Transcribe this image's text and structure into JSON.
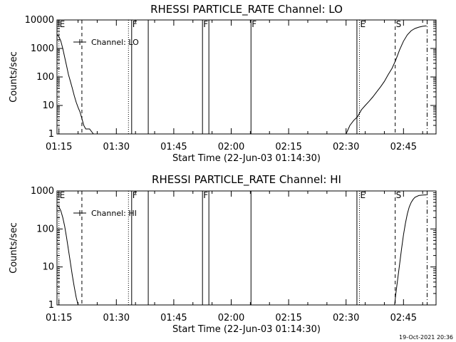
{
  "chart_data": [
    {
      "type": "line",
      "title": "RHESSI PARTICLE_RATE Channel: LO",
      "xlabel": "Start Time (22-Jun-03 01:14:30)",
      "ylabel": "Counts/sec",
      "yscale": "log",
      "xlim": [
        "01:14:30",
        "02:53:30"
      ],
      "ylim": [
        1,
        10000
      ],
      "x_ticks": [
        "01:15",
        "01:30",
        "01:45",
        "02:00",
        "02:15",
        "02:30",
        "02:45"
      ],
      "y_ticks": [
        "1",
        "10",
        "100",
        "1000",
        "10000"
      ],
      "legend": {
        "position": "top-left",
        "entries": [
          "Channel: LO"
        ]
      },
      "grid": false,
      "series": [
        {
          "name": "Channel: LO",
          "segments": [
            {
              "x": [
                "01:14:30",
                "01:15:00",
                "01:15:30",
                "01:16:00",
                "01:16:30",
                "01:17:00",
                "01:17:30",
                "01:18:00",
                "01:18:30",
                "01:19:00",
                "01:19:30",
                "01:20:00",
                "01:20:30",
                "01:21:00",
                "01:21:30",
                "01:22:00",
                "01:23:00",
                "01:24:00"
              ],
              "y": [
                3000,
                2600,
                1800,
                1000,
                500,
                250,
                120,
                70,
                40,
                22,
                13,
                8.5,
                6,
                3.5,
                2,
                1.5,
                1.5,
                1
              ]
            },
            {
              "x": [
                "02:30:00",
                "02:31:00",
                "02:32:00",
                "02:33:00",
                "02:34:00",
                "02:35:00",
                "02:36:00",
                "02:37:00",
                "02:38:00",
                "02:39:00",
                "02:40:00",
                "02:41:00",
                "02:42:00",
                "02:43:00",
                "02:44:00",
                "02:45:00",
                "02:46:00",
                "02:47:00",
                "02:48:00",
                "02:49:00",
                "02:50:00",
                "02:51:00"
              ],
              "y": [
                1,
                2,
                3,
                4,
                7,
                10,
                14,
                20,
                30,
                45,
                70,
                120,
                200,
                400,
                900,
                1800,
                3000,
                4200,
                5000,
                5600,
                6000,
                6200
              ]
            }
          ]
        }
      ],
      "markers": [
        {
          "label": "E",
          "x": "01:15:00",
          "style": "dotted"
        },
        {
          "x": "01:21:00",
          "style": "dashed"
        },
        {
          "x": "01:33:10",
          "style": "dotted"
        },
        {
          "label": "F",
          "x": "01:34:00",
          "style": "solid"
        },
        {
          "x": "01:38:20",
          "style": "solid"
        },
        {
          "label": "F",
          "x": "01:52:30",
          "style": "solid"
        },
        {
          "x": "01:54:10",
          "style": "solid"
        },
        {
          "label": "F",
          "x": "02:05:10",
          "style": "solid"
        },
        {
          "x": "02:32:50",
          "style": "solid"
        },
        {
          "label": "E",
          "x": "02:33:30",
          "style": "dotted"
        },
        {
          "label": "S",
          "x": "02:42:50",
          "style": "dashed"
        },
        {
          "x": "02:51:10",
          "style": "dashdot"
        }
      ]
    },
    {
      "type": "line",
      "title": "RHESSI PARTICLE_RATE Channel: HI",
      "xlabel": "Start Time (22-Jun-03 01:14:30)",
      "ylabel": "Counts/sec",
      "yscale": "log",
      "xlim": [
        "01:14:30",
        "02:53:30"
      ],
      "ylim": [
        1,
        1000
      ],
      "x_ticks": [
        "01:15",
        "01:30",
        "01:45",
        "02:00",
        "02:15",
        "02:30",
        "02:45"
      ],
      "y_ticks": [
        "1",
        "10",
        "100",
        "1000"
      ],
      "legend": {
        "position": "top-left",
        "entries": [
          "Channel: HI"
        ]
      },
      "grid": false,
      "series": [
        {
          "name": "Channel: HI",
          "segments": [
            {
              "x": [
                "01:14:30",
                "01:15:00",
                "01:15:30",
                "01:16:00",
                "01:16:30",
                "01:17:00",
                "01:17:30",
                "01:18:00",
                "01:18:30",
                "01:19:00",
                "01:19:30",
                "01:20:00"
              ],
              "y": [
                420,
                380,
                300,
                200,
                120,
                60,
                28,
                13,
                6,
                3,
                1.6,
                1
              ]
            },
            {
              "x": [
                "02:42:40",
                "02:43:00",
                "02:43:30",
                "02:44:00",
                "02:44:30",
                "02:45:00",
                "02:45:30",
                "02:46:00",
                "02:46:30",
                "02:47:00",
                "02:47:30",
                "02:48:00",
                "02:49:00",
                "02:50:00",
                "02:51:00"
              ],
              "y": [
                1,
                2,
                5,
                12,
                30,
                70,
                140,
                250,
                380,
                500,
                600,
                680,
                760,
                780,
                790
              ]
            }
          ]
        }
      ],
      "markers": [
        {
          "label": "E",
          "x": "01:15:00",
          "style": "dotted"
        },
        {
          "x": "01:21:00",
          "style": "dashed"
        },
        {
          "x": "01:33:10",
          "style": "dotted"
        },
        {
          "label": "F",
          "x": "01:34:00",
          "style": "solid"
        },
        {
          "x": "01:38:20",
          "style": "solid"
        },
        {
          "label": "F",
          "x": "01:52:30",
          "style": "solid"
        },
        {
          "x": "01:54:10",
          "style": "solid"
        },
        {
          "x": "02:05:10",
          "style": "solid"
        },
        {
          "x": "02:32:50",
          "style": "solid"
        },
        {
          "label": "E",
          "x": "02:33:30",
          "style": "dotted"
        },
        {
          "label": "S",
          "x": "02:42:50",
          "style": "dashed"
        },
        {
          "x": "02:51:10",
          "style": "dashdot"
        }
      ]
    }
  ],
  "footer": {
    "timestamp": "19-Oct-2021 20:36"
  }
}
